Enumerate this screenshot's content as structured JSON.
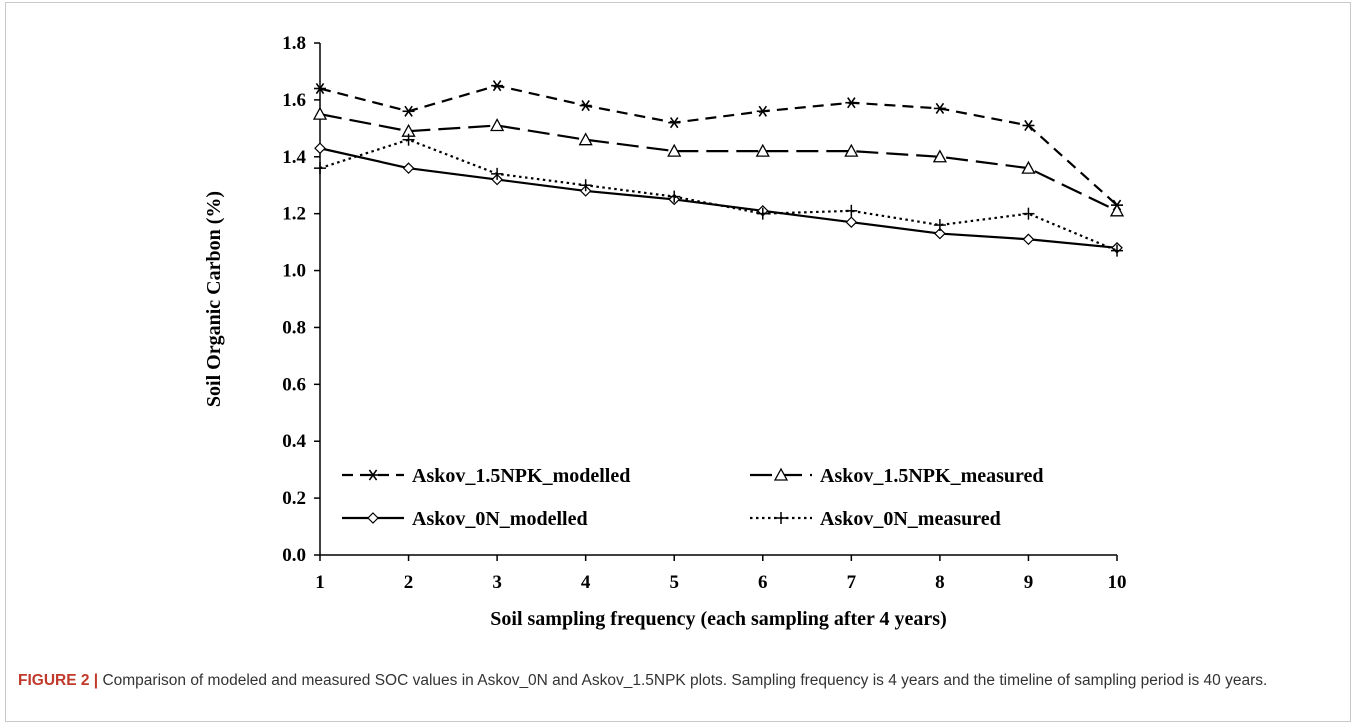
{
  "chart_data": {
    "type": "line",
    "xlabel": "Soil sampling frequency (each sampling after 4 years)",
    "ylabel": "Soil Organic Carbon (%)",
    "x": [
      1,
      2,
      3,
      4,
      5,
      6,
      7,
      8,
      9,
      10
    ],
    "xlim": [
      1,
      10
    ],
    "ylim": [
      0.0,
      1.8
    ],
    "x_ticks": [
      "1",
      "2",
      "3",
      "4",
      "5",
      "6",
      "7",
      "8",
      "9",
      "10"
    ],
    "y_ticks": [
      "0.0",
      "0.2",
      "0.4",
      "0.6",
      "0.8",
      "1.0",
      "1.2",
      "1.4",
      "1.6",
      "1.8"
    ],
    "y_tick_values": [
      0.0,
      0.2,
      0.4,
      0.6,
      0.8,
      1.0,
      1.2,
      1.4,
      1.6,
      1.8
    ],
    "grid": false,
    "legend_position": "inside-bottom",
    "series": [
      {
        "name": "Askov_1.5NPK_modelled",
        "marker": "asterisk",
        "line_style": "short-dash",
        "values": [
          1.64,
          1.56,
          1.65,
          1.58,
          1.52,
          1.56,
          1.59,
          1.57,
          1.51,
          1.23
        ]
      },
      {
        "name": "Askov_1.5NPK_measured",
        "marker": "triangle",
        "line_style": "long-dash",
        "values": [
          1.55,
          1.49,
          1.51,
          1.46,
          1.42,
          1.42,
          1.42,
          1.4,
          1.36,
          1.21
        ]
      },
      {
        "name": "Askov_0N_modelled",
        "marker": "diamond",
        "line_style": "solid",
        "values": [
          1.43,
          1.36,
          1.32,
          1.28,
          1.25,
          1.21,
          1.17,
          1.13,
          1.11,
          1.08
        ]
      },
      {
        "name": "Askov_0N_measured",
        "marker": "plus",
        "line_style": "dotted",
        "values": [
          1.36,
          1.46,
          1.34,
          1.3,
          1.26,
          1.2,
          1.21,
          1.16,
          1.2,
          1.07
        ]
      }
    ]
  },
  "caption": {
    "label": "FIGURE 2 |",
    "text": " Comparison of modeled and measured SOC values in Askov_0N and Askov_1.5NPK plots. Sampling frequency is 4 years and the timeline of sampling period is 40 years."
  }
}
